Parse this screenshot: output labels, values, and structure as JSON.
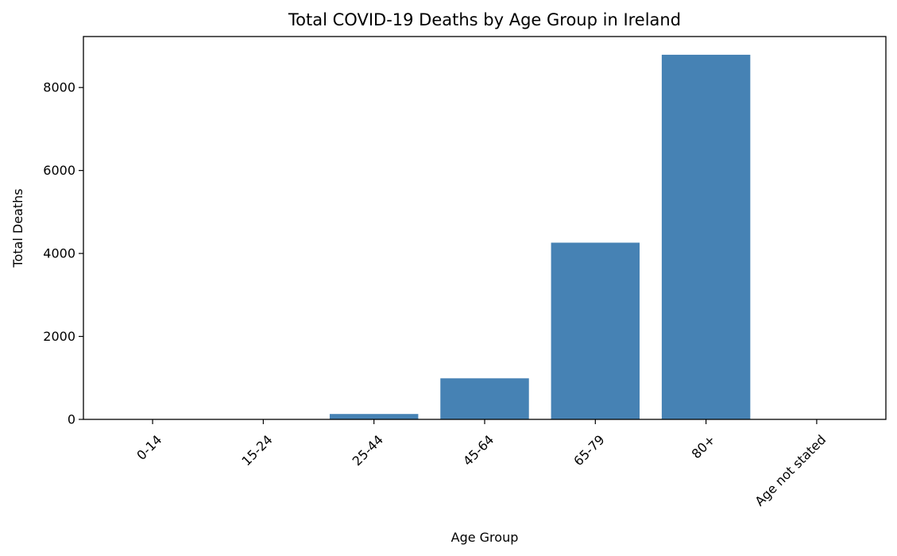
{
  "chart_data": {
    "type": "bar",
    "title": "Total COVID-19 Deaths by Age Group in Ireland",
    "xlabel": "Age Group",
    "ylabel": "Total Deaths",
    "categories": [
      "0-14",
      "15-24",
      "25-44",
      "45-64",
      "65-79",
      "80+",
      "Age not stated"
    ],
    "values": [
      5,
      8,
      130,
      990,
      4260,
      8790,
      1
    ],
    "ylim": [
      0,
      9229
    ],
    "yticks": [
      0,
      2000,
      4000,
      6000,
      8000
    ],
    "bar_color": "#4682b4",
    "grid": false,
    "legend": "none"
  }
}
